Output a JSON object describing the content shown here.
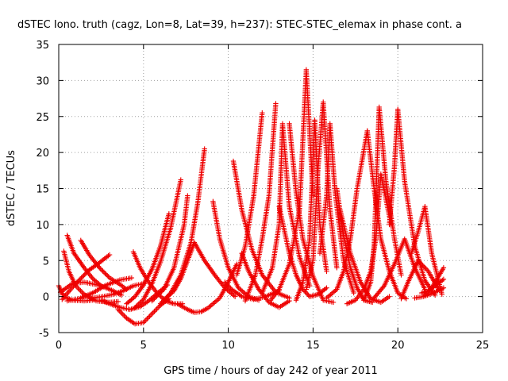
{
  "chart_data": {
    "type": "scatter",
    "title": "dSTEC Iono. truth (cagz, Lon=8, Lat=39, h=237): STEC-STEC_elemax in phase cont. a",
    "xlabel": "GPS time / hours of day 242 of year 2011",
    "ylabel": "dSTEC  / TECUs",
    "xlim": [
      0,
      25
    ],
    "ylim": [
      -5,
      35
    ],
    "xticks": [
      0,
      5,
      10,
      15,
      20,
      25
    ],
    "yticks": [
      -5,
      0,
      5,
      10,
      15,
      20,
      25,
      30,
      35
    ],
    "grid": true,
    "marker": "+",
    "color": "#ee0000",
    "arcs": [
      {
        "x": [
          0.0,
          0.3,
          0.8,
          1.5,
          2.0
        ],
        "y": [
          1.5,
          0.0,
          -0.5,
          -0.6,
          -0.5
        ]
      },
      {
        "x": [
          0.1,
          0.8,
          1.5,
          2.5,
          3.2,
          3.7
        ],
        "y": [
          0.6,
          1.8,
          2.0,
          1.5,
          0.8,
          0.2
        ]
      },
      {
        "x": [
          0.3,
          0.6,
          1.0,
          1.5,
          2.2,
          3.0,
          3.5
        ],
        "y": [
          6.3,
          3.5,
          1.5,
          0.3,
          -0.6,
          -0.8,
          -0.7
        ]
      },
      {
        "x": [
          0.5,
          0.9,
          1.5,
          2.0,
          2.5
        ],
        "y": [
          8.5,
          6.0,
          4.0,
          2.5,
          1.5
        ]
      },
      {
        "x": [
          1.3,
          1.8,
          2.4,
          3.0,
          3.6,
          4.0
        ],
        "y": [
          7.8,
          5.8,
          4.0,
          2.6,
          1.7,
          1.0
        ]
      },
      {
        "x": [
          0.2,
          1.0,
          1.8,
          2.4,
          3.0
        ],
        "y": [
          -0.4,
          1.8,
          3.7,
          4.7,
          5.8
        ]
      },
      {
        "x": [
          0.5,
          1.2,
          2.0,
          2.8,
          3.6,
          4.3
        ],
        "y": [
          -0.6,
          -0.3,
          0.5,
          1.6,
          2.3,
          2.6
        ]
      },
      {
        "x": [
          2.0,
          2.6,
          3.2,
          3.8,
          4.4,
          5.0
        ],
        "y": [
          -0.2,
          0.0,
          0.3,
          0.8,
          1.5,
          1.8
        ]
      },
      {
        "x": [
          2.5,
          3.0,
          3.6,
          4.2,
          4.8,
          5.3,
          5.8,
          6.4
        ],
        "y": [
          -0.5,
          -1.0,
          -1.5,
          -1.8,
          -1.4,
          -0.6,
          0.4,
          1.6
        ]
      },
      {
        "x": [
          3.5,
          4.0,
          4.5,
          5.0,
          5.5,
          6.0,
          6.5
        ],
        "y": [
          -1.8,
          -3.0,
          -3.8,
          -3.6,
          -2.4,
          -1.2,
          -0.3
        ]
      },
      {
        "x": [
          4.4,
          4.8,
          5.3,
          5.8,
          6.3,
          6.8,
          7.3
        ],
        "y": [
          6.2,
          4.0,
          2.0,
          0.5,
          -0.6,
          -1.0,
          -1.0
        ]
      },
      {
        "x": [
          4.0,
          4.5,
          5.0,
          5.5,
          6.0,
          6.5
        ],
        "y": [
          -1.0,
          0.0,
          1.6,
          3.8,
          7.0,
          11.5
        ]
      },
      {
        "x": [
          4.5,
          5.0,
          5.5,
          6.0,
          6.6,
          7.2
        ],
        "y": [
          -1.5,
          -0.4,
          1.8,
          4.8,
          9.5,
          16.2
        ]
      },
      {
        "x": [
          5.5,
          6.2,
          6.8,
          7.4,
          7.6
        ],
        "y": [
          -0.6,
          1.0,
          4.0,
          10.0,
          14.0
        ]
      },
      {
        "x": [
          6.0,
          6.6,
          7.2,
          7.8,
          8.2,
          8.6
        ],
        "y": [
          -1.0,
          0.5,
          3.0,
          7.5,
          13.0,
          20.5
        ]
      },
      {
        "x": [
          6.2,
          6.8,
          7.2,
          7.6,
          8.0,
          8.6,
          9.2,
          9.8,
          10.4
        ],
        "y": [
          -0.5,
          0.8,
          2.5,
          5.0,
          7.5,
          5.0,
          3.0,
          1.2,
          0.0
        ]
      },
      {
        "x": [
          7.0,
          7.6,
          8.0,
          8.4,
          8.8,
          9.5,
          10.0,
          10.5
        ],
        "y": [
          -1.0,
          -1.8,
          -2.2,
          -2.1,
          -1.6,
          -0.2,
          2.0,
          4.5
        ]
      },
      {
        "x": [
          9.1,
          9.5,
          10.0,
          10.6,
          11.2,
          11.8
        ],
        "y": [
          13.2,
          8.0,
          4.0,
          1.2,
          0.0,
          -0.5
        ]
      },
      {
        "x": [
          9.8,
          10.2,
          10.8,
          11.5,
          12.2,
          13.0
        ],
        "y": [
          2.0,
          1.0,
          0.0,
          -0.4,
          0.0,
          0.8
        ]
      },
      {
        "x": [
          10.3,
          10.8,
          11.4,
          12.0,
          12.8,
          13.6
        ],
        "y": [
          18.8,
          12.0,
          6.5,
          3.0,
          0.6,
          -0.2
        ]
      },
      {
        "x": [
          10.5,
          11.0,
          11.5,
          12.0
        ],
        "y": [
          3.0,
          7.0,
          14.0,
          25.5
        ]
      },
      {
        "x": [
          10.8,
          11.2,
          11.8,
          12.4,
          13.0,
          13.6
        ],
        "y": [
          6.0,
          3.5,
          1.0,
          -0.8,
          -1.5,
          -0.6
        ]
      },
      {
        "x": [
          11.0,
          11.6,
          12.0,
          12.4,
          12.8
        ],
        "y": [
          -0.6,
          3.0,
          8.0,
          14.0,
          26.8
        ]
      },
      {
        "x": [
          12.0,
          12.6,
          13.0,
          13.2,
          13.6,
          14.2,
          14.8
        ],
        "y": [
          0.5,
          4.0,
          10.0,
          24.0,
          12.5,
          5.5,
          1.5
        ]
      },
      {
        "x": [
          12.5,
          13.0,
          13.6,
          14.2,
          14.6,
          15.0
        ],
        "y": [
          -0.5,
          1.0,
          4.5,
          12.0,
          31.5,
          14.0
        ]
      },
      {
        "x": [
          13.0,
          13.6,
          14.0,
          14.4,
          14.8,
          15.3,
          15.8
        ],
        "y": [
          12.5,
          6.0,
          3.0,
          1.0,
          0.0,
          0.3,
          1.2
        ]
      },
      {
        "x": [
          13.6,
          14.0,
          14.4,
          15.0,
          15.6,
          16.2
        ],
        "y": [
          24.0,
          14.5,
          8.0,
          2.8,
          -0.5,
          -0.8
        ]
      },
      {
        "x": [
          14.0,
          14.4,
          14.8,
          15.1,
          15.4,
          15.8
        ],
        "y": [
          -0.5,
          2.0,
          8.0,
          24.5,
          10.0,
          3.5
        ]
      },
      {
        "x": [
          14.6,
          15.0,
          15.3,
          15.6,
          16.0,
          16.4
        ],
        "y": [
          1.0,
          5.0,
          18.0,
          27.0,
          12.0,
          4.0
        ]
      },
      {
        "x": [
          15.4,
          15.8,
          16.0,
          16.3,
          16.8,
          17.4
        ],
        "y": [
          6.0,
          14.0,
          24.0,
          14.5,
          5.0,
          0.5
        ]
      },
      {
        "x": [
          15.8,
          16.4,
          16.8,
          17.2,
          17.6,
          18.2
        ],
        "y": [
          -0.2,
          1.0,
          3.5,
          8.0,
          15.0,
          23.0
        ]
      },
      {
        "x": [
          16.4,
          16.8,
          17.2,
          17.6,
          18.0,
          18.5
        ],
        "y": [
          15.0,
          8.5,
          4.0,
          1.2,
          -0.5,
          -0.8
        ]
      },
      {
        "x": [
          16.6,
          17.2,
          17.8,
          18.4,
          19.0,
          19.5
        ],
        "y": [
          12.0,
          6.0,
          2.0,
          -0.3,
          -0.8,
          0.0
        ]
      },
      {
        "x": [
          17.0,
          17.5,
          18.0,
          18.4,
          18.7,
          19.0,
          19.6
        ],
        "y": [
          -1.0,
          -0.5,
          1.0,
          3.5,
          8.0,
          17.0,
          10.0
        ]
      },
      {
        "x": [
          18.0,
          18.4,
          18.6,
          18.9,
          19.3,
          19.8,
          20.2
        ],
        "y": [
          -0.5,
          2.0,
          7.0,
          26.3,
          16.0,
          8.0,
          3.0
        ]
      },
      {
        "x": [
          18.2,
          18.6,
          19.0,
          19.5,
          20.0,
          20.5
        ],
        "y": [
          23.0,
          15.0,
          8.0,
          3.5,
          0.5,
          -0.3
        ]
      },
      {
        "x": [
          18.6,
          19.2,
          19.8,
          20.4,
          21.0,
          21.6
        ],
        "y": [
          -0.2,
          1.5,
          4.5,
          8.0,
          4.0,
          1.0
        ]
      },
      {
        "x": [
          19.5,
          19.8,
          20.0,
          20.4,
          21.0,
          21.6,
          22.2
        ],
        "y": [
          10.0,
          18.0,
          26.0,
          16.0,
          7.0,
          2.2,
          0.2
        ]
      },
      {
        "x": [
          20.2,
          20.6,
          21.2,
          21.8,
          22.4
        ],
        "y": [
          -0.3,
          2.0,
          5.0,
          3.5,
          1.0
        ]
      },
      {
        "x": [
          20.8,
          21.2,
          21.6,
          22.0,
          22.6
        ],
        "y": [
          6.0,
          9.0,
          12.5,
          6.0,
          0.3
        ]
      },
      {
        "x": [
          21.6,
          22.0,
          22.4,
          22.7
        ],
        "y": [
          0.2,
          1.2,
          2.8,
          4.0
        ]
      },
      {
        "x": [
          21.4,
          21.8,
          22.2,
          22.7
        ],
        "y": [
          0.5,
          0.8,
          1.5,
          2.4
        ]
      },
      {
        "x": [
          21.0,
          21.5,
          22.0,
          22.7
        ],
        "y": [
          -0.2,
          0.0,
          0.4,
          1.2
        ]
      }
    ]
  }
}
